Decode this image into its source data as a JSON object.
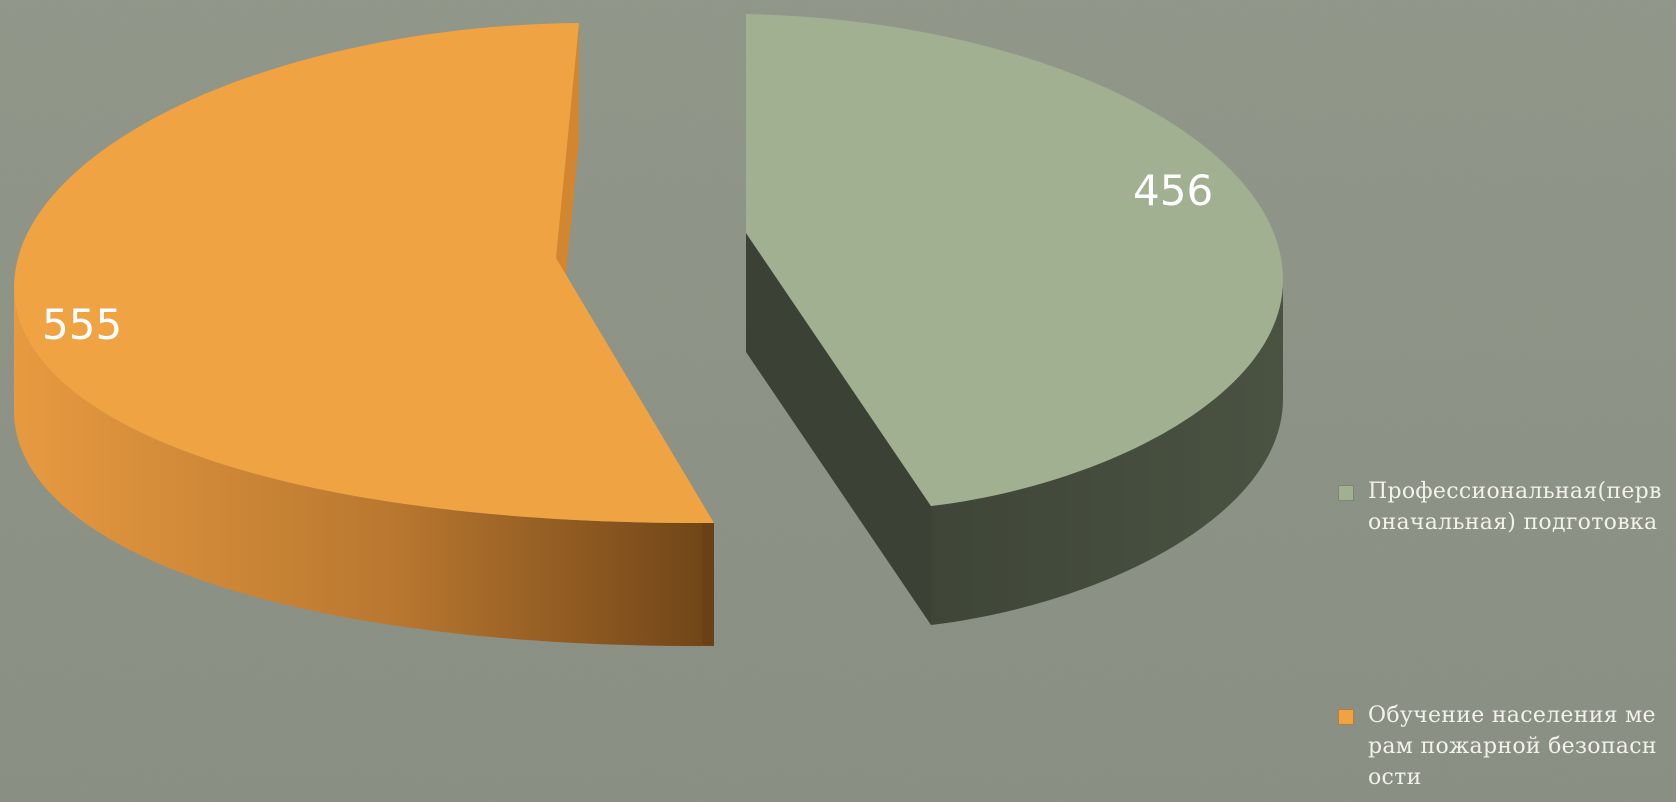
{
  "chart_data": {
    "type": "pie",
    "title": "",
    "style": "3d-exploded",
    "series": [
      {
        "name": "Профессиональная(первоначальная) подготовка",
        "value": 456,
        "color": "#a0b090",
        "side_color": "#434a3c"
      },
      {
        "name": "Обучение населения мерам пожарной безопасности",
        "value": 555,
        "color": "#efa343",
        "side_color": "#a5652a"
      }
    ],
    "data_labels": [
      "456",
      "555"
    ],
    "legend_position": "right"
  },
  "legend": {
    "items": [
      {
        "label": "Профессиональная(первоначальная) подготовка",
        "color": "#a0b090"
      },
      {
        "label": "Обучение населения мерам пожарной безопасности",
        "color": "#efa343"
      }
    ]
  },
  "background_color": "#8d9385"
}
